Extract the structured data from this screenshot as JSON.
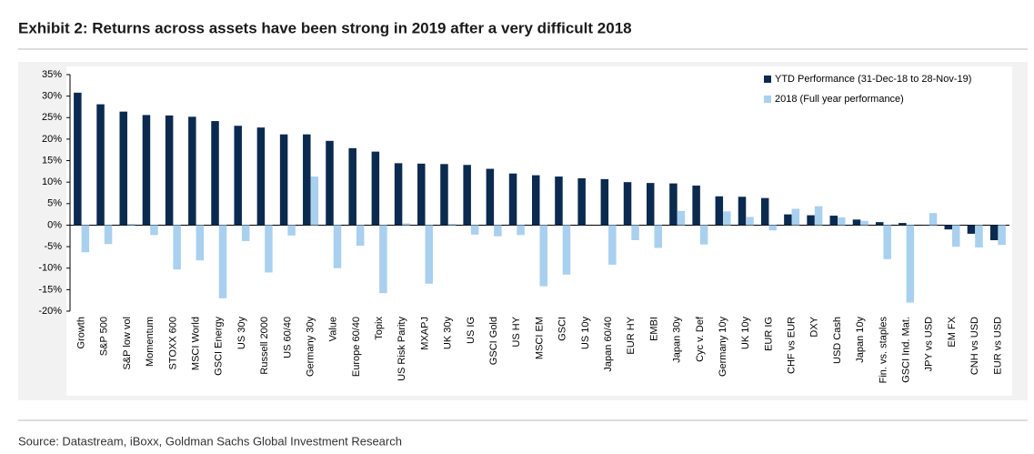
{
  "chart_data": {
    "type": "bar",
    "title": "Exhibit 2: Returns across assets have been strong in 2019 after a very difficult 2018",
    "source": "Source: Datastream, iBoxx, Goldman Sachs Global Investment Research",
    "categories": [
      "Growth",
      "S&P 500",
      "S&P low vol",
      "Momentum",
      "STOXX 600",
      "MSCI World",
      "GSCI Energy",
      "US 30y",
      "Russell 2000",
      "US 60/40",
      "Germany 30y",
      "Value",
      "Europe 60/40",
      "Topix",
      "US Risk Parity",
      "MXAPJ",
      "UK 30y",
      "US IG",
      "GSCI Gold",
      "US HY",
      "MSCI EM",
      "GSCI",
      "US 10y",
      "Japan 60/40",
      "EUR HY",
      "EMBI",
      "Japan 30y",
      "Cyc v. Def",
      "Germany 10y",
      "UK 10y",
      "EUR IG",
      "CHF vs EUR",
      "DXY",
      "USD Cash",
      "Japan 10y",
      "Fin. vs. staples",
      "GSCI Ind. Mat.",
      "JPY vs USD",
      "EM FX",
      "CNH vs USD",
      "EUR vs USD"
    ],
    "series": [
      {
        "name": "YTD Performance (31-Dec-18 to 28-Nov-19)",
        "color": "#0b2a4f",
        "values": [
          30.8,
          28.1,
          26.4,
          25.6,
          25.5,
          25.2,
          24.2,
          23.1,
          22.7,
          21.1,
          21.1,
          19.6,
          17.9,
          17.1,
          14.4,
          14.3,
          14.2,
          14.0,
          13.1,
          12.0,
          11.6,
          11.3,
          10.9,
          10.7,
          10.0,
          9.8,
          9.7,
          9.2,
          6.7,
          6.6,
          6.3,
          2.5,
          2.3,
          2.2,
          1.3,
          0.7,
          0.5,
          0.1,
          -1.0,
          -2.0,
          -3.5
        ]
      },
      {
        "name": "2018 (Full year performance)",
        "color": "#a9d0ee",
        "values": [
          -6.3,
          -4.4,
          0.3,
          -2.3,
          -10.3,
          -8.2,
          -17.0,
          -3.7,
          -11.0,
          -2.4,
          11.3,
          -10.0,
          -4.8,
          -15.8,
          0.4,
          -13.6,
          0.3,
          -2.2,
          -2.6,
          -2.3,
          -14.2,
          -11.5,
          0.0,
          -9.2,
          -3.5,
          -5.3,
          3.3,
          -4.5,
          3.2,
          1.9,
          -1.2,
          3.8,
          4.4,
          1.8,
          1.0,
          -7.9,
          -18.0,
          2.8,
          -5.0,
          -5.2,
          -4.6
        ]
      }
    ],
    "ylim": [
      -20,
      35
    ],
    "yticks": [
      {
        "value": -20,
        "label": "-20%"
      },
      {
        "value": -15,
        "label": "-15%"
      },
      {
        "value": -10,
        "label": "-10%"
      },
      {
        "value": -5,
        "label": "-5%"
      },
      {
        "value": 0,
        "label": "0%"
      },
      {
        "value": 5,
        "label": "5%"
      },
      {
        "value": 10,
        "label": "10%"
      },
      {
        "value": 15,
        "label": "15%"
      },
      {
        "value": 20,
        "label": "20%"
      },
      {
        "value": 25,
        "label": "25%"
      },
      {
        "value": 30,
        "label": "30%"
      },
      {
        "value": 35,
        "label": "35%"
      }
    ],
    "legend": "top-right"
  }
}
